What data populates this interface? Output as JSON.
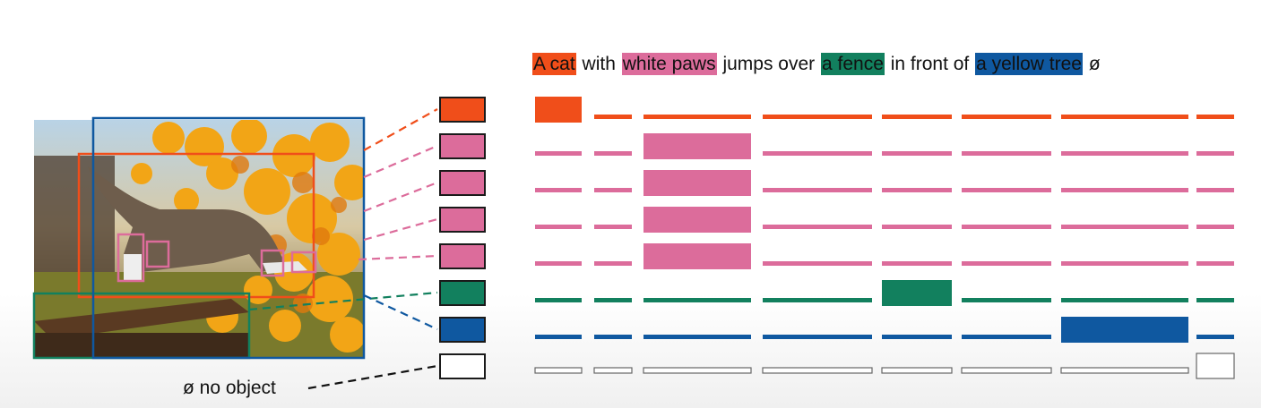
{
  "caption": {
    "words": [
      {
        "text": "A cat",
        "entity": 0
      },
      {
        "text": " with ",
        "entity": null
      },
      {
        "text": "white paws",
        "entity": 1
      },
      {
        "text": " jumps over ",
        "entity": null
      },
      {
        "text": "a fence",
        "entity": 2
      },
      {
        "text": " in front of ",
        "entity": null
      },
      {
        "text": "a yellow tree",
        "entity": 3
      },
      {
        "text": " ø",
        "entity": null
      }
    ]
  },
  "entity_colors": [
    "#f04e1a",
    "#dc6c9b",
    "#12805e",
    "#0f58a0"
  ],
  "no_object_label": "ø no object",
  "queries": [
    {
      "color": "#f04e1a",
      "match_column": 0
    },
    {
      "color": "#dc6c9b",
      "match_column": 2
    },
    {
      "color": "#dc6c9b",
      "match_column": 2
    },
    {
      "color": "#dc6c9b",
      "match_column": 2
    },
    {
      "color": "#dc6c9b",
      "match_column": 2
    },
    {
      "color": "#12805e",
      "match_column": 4
    },
    {
      "color": "#0f58a0",
      "match_column": 6
    },
    {
      "color": "#ffffff",
      "match_column": 8
    }
  ],
  "photo_boxes": [
    {
      "label": "cat",
      "color": "#f04e1a"
    },
    {
      "label": "paw",
      "color": "#dc6c9b"
    },
    {
      "label": "paw",
      "color": "#dc6c9b"
    },
    {
      "label": "paw",
      "color": "#dc6c9b"
    },
    {
      "label": "paw",
      "color": "#dc6c9b"
    },
    {
      "label": "fence",
      "color": "#12805e"
    },
    {
      "label": "tree",
      "color": "#0f58a0"
    }
  ]
}
